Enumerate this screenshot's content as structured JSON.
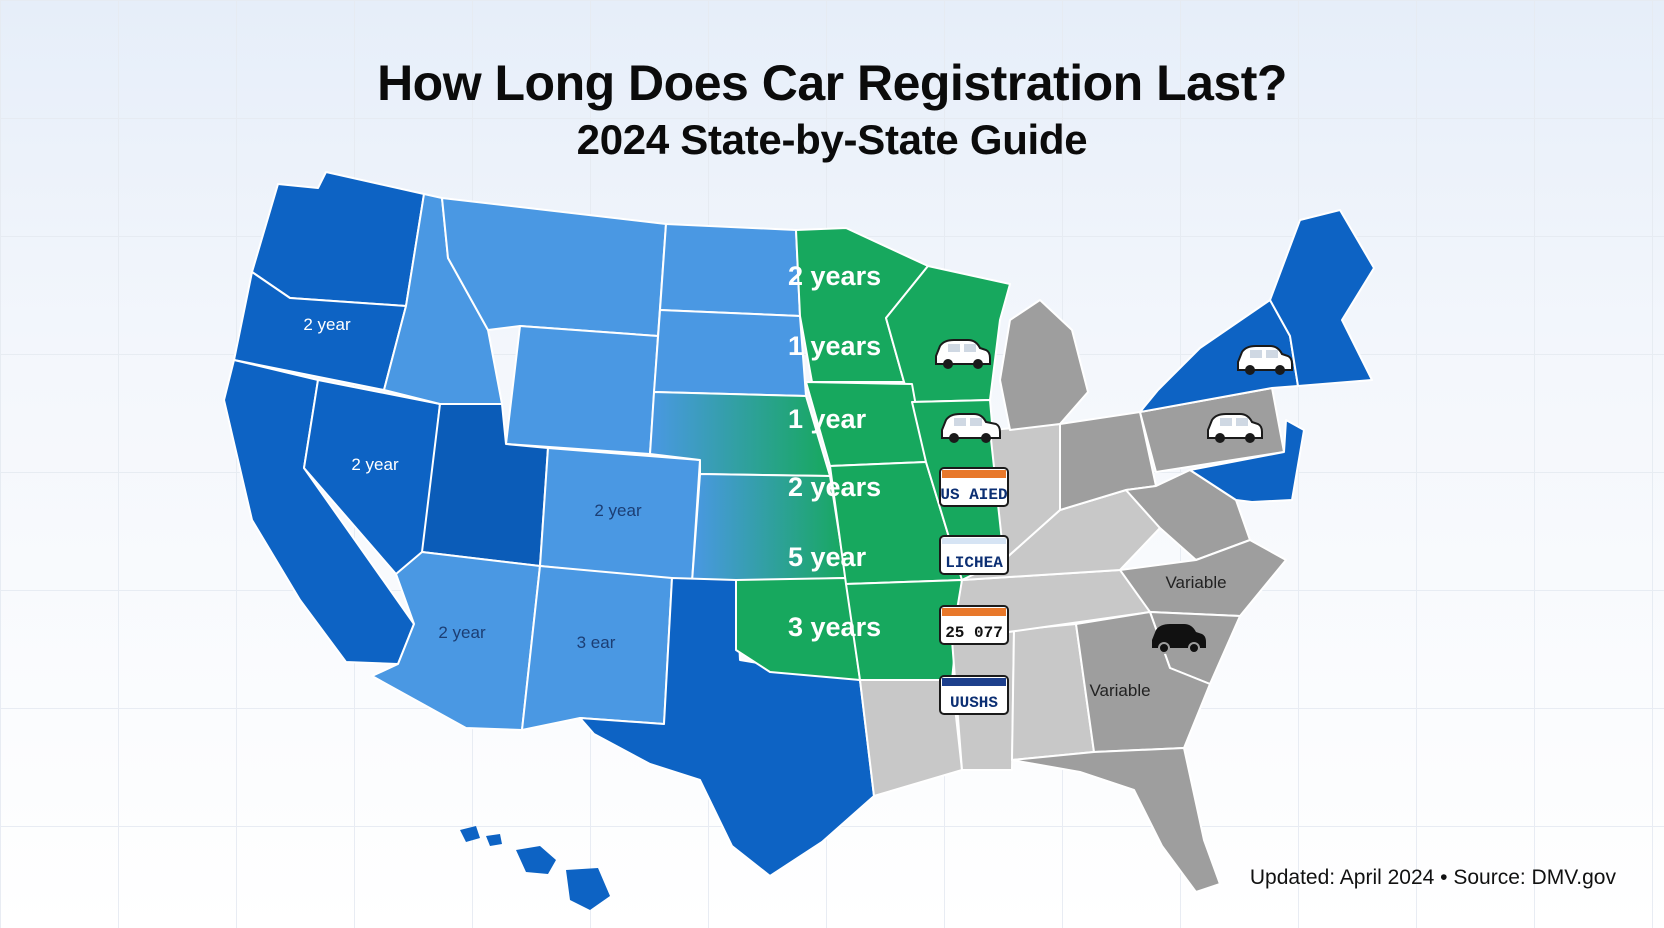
{
  "header": {
    "title": "How Long Does Car Registration Last?",
    "subtitle": "2024 State-by-State Guide"
  },
  "colors": {
    "blue_dark": "#0d63c4",
    "blue_medium": "#1f73d1",
    "blue_light": "#4a98e3",
    "green": "#17a85e",
    "gray": "#9e9e9e",
    "gray_light": "#c8c8c8",
    "border": "#ffffff"
  },
  "map": {
    "state_labels": {
      "oregon": "2 year",
      "nevada": "2 year",
      "colorado": "2 year",
      "arizona": "2 year",
      "new_mexico": "3 ear",
      "southeast_north": "Variable",
      "southeast_south": "Variable"
    },
    "central_labels": [
      "2 years",
      "1 years",
      "1 year",
      "2 years",
      "5 year",
      "3 years"
    ],
    "plates": [
      "US AIED",
      "LICHEA",
      "25 077",
      "UUSHS"
    ],
    "icons": [
      "car-icon",
      "car-icon",
      "car-icon",
      "car-icon",
      "car-icon",
      "license-plate-icon"
    ]
  },
  "footer": {
    "text": "Updated: April 2024 • Source: DMV.gov"
  }
}
